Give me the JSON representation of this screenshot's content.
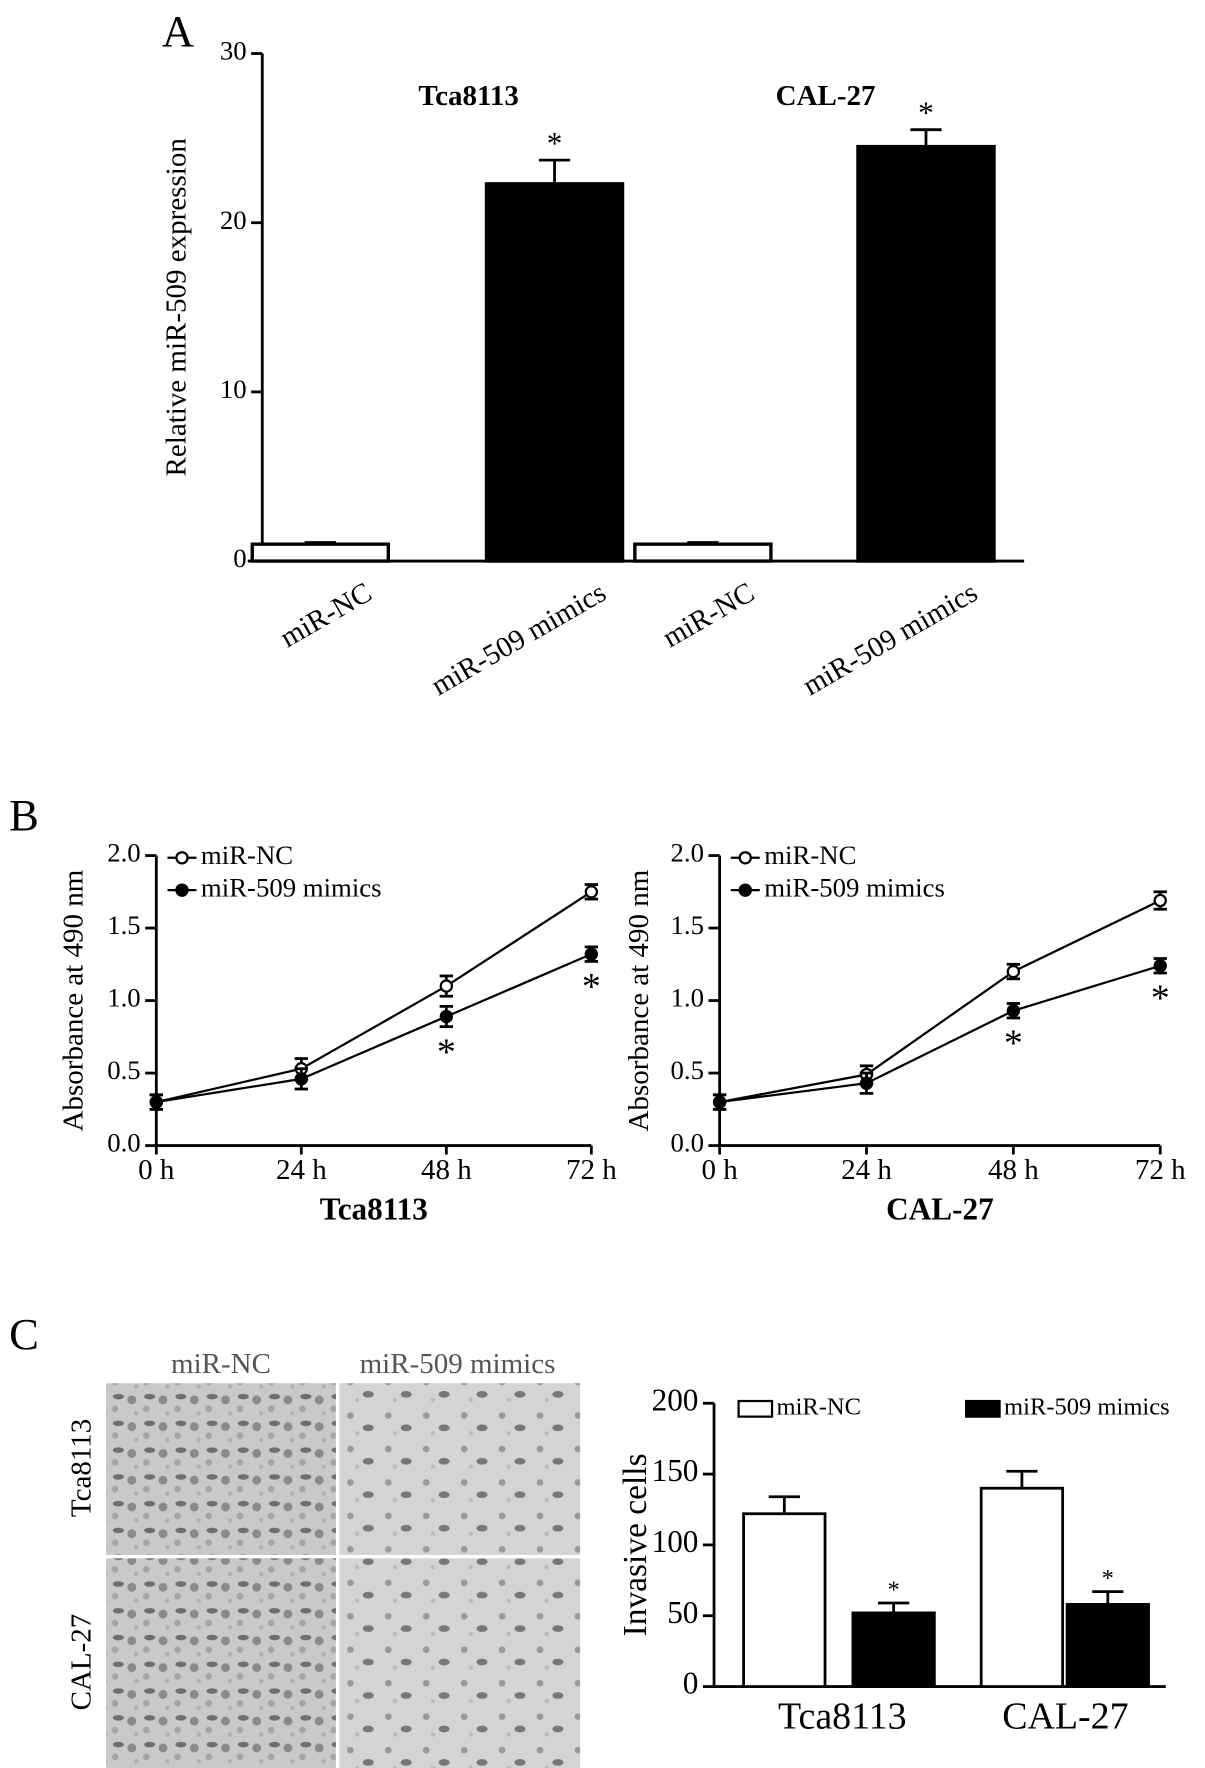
{
  "panel_labels": [
    "A",
    "B",
    "C"
  ],
  "micrographs": {
    "columns": [
      "miR-NC",
      "miR-509 mimics"
    ],
    "rows": [
      "Tca8113",
      "CAL-27"
    ]
  },
  "chart_data": [
    {
      "type": "bar",
      "ylabel": "Relative miR-509 expression",
      "categories": [
        "miR-NC",
        "miR-509 mimics",
        "miR-NC",
        "miR-509 mimics"
      ],
      "values": [
        1.0,
        22.3,
        1.0,
        24.5
      ],
      "errors": [
        0.1,
        1.4,
        0.1,
        1.0
      ],
      "colors": [
        "#ffffff",
        "#000000",
        "#ffffff",
        "#000000"
      ],
      "annotations": [
        null,
        "*",
        null,
        "*"
      ],
      "group_labels": [
        "Tca8113",
        "CAL-27"
      ],
      "ylim": [
        0,
        30
      ],
      "yticks": [
        0,
        10,
        20,
        30
      ]
    },
    {
      "type": "line",
      "xlabel": "Tca8113",
      "ylabel": "Absorbance at 490 nm",
      "categories": [
        "0 h",
        "24 h",
        "48 h",
        "72 h"
      ],
      "series": [
        {
          "name": "miR-NC",
          "color": "#ffffff",
          "values": [
            0.3,
            0.53,
            1.1,
            1.75
          ],
          "errors": [
            0.05,
            0.07,
            0.07,
            0.05
          ],
          "annotations": [
            null,
            null,
            null,
            null
          ]
        },
        {
          "name": "miR-509 mimics",
          "color": "#000000",
          "values": [
            0.3,
            0.46,
            0.89,
            1.32
          ],
          "errors": [
            0.05,
            0.07,
            0.07,
            0.05
          ],
          "annotations": [
            null,
            null,
            "*",
            "*"
          ]
        }
      ],
      "ylim": [
        0,
        2
      ],
      "yticks": [
        {
          "value": 0,
          "label": "0.0"
        },
        0.5,
        {
          "value": 1,
          "label": "1.0"
        },
        1.5,
        {
          "value": 2,
          "label": "2.0"
        }
      ]
    },
    {
      "type": "line",
      "xlabel": "CAL-27",
      "ylabel": "Absorbance at 490 nm",
      "categories": [
        "0 h",
        "24 h",
        "48 h",
        "72 h"
      ],
      "series": [
        {
          "name": "miR-NC",
          "color": "#ffffff",
          "values": [
            0.3,
            0.49,
            1.2,
            1.69
          ],
          "errors": [
            0.05,
            0.06,
            0.05,
            0.06
          ],
          "annotations": [
            null,
            null,
            null,
            null
          ]
        },
        {
          "name": "miR-509 mimics",
          "color": "#000000",
          "values": [
            0.3,
            0.43,
            0.93,
            1.24
          ],
          "errors": [
            0.05,
            0.07,
            0.05,
            0.05
          ],
          "annotations": [
            null,
            null,
            "*",
            "*"
          ]
        }
      ],
      "ylim": [
        0,
        2
      ],
      "yticks": [
        {
          "value": 0,
          "label": "0.0"
        },
        0.5,
        {
          "value": 1,
          "label": "1.0"
        },
        1.5,
        {
          "value": 2,
          "label": "2.0"
        }
      ]
    },
    {
      "type": "grouped_bar",
      "ylabel": "Invasive cells",
      "categories": [
        "Tca8113",
        "CAL-27"
      ],
      "series": [
        {
          "name": "miR-NC",
          "color": "#ffffff",
          "values": [
            122,
            140
          ],
          "errors": [
            12,
            12
          ],
          "annotations": [
            null,
            null
          ]
        },
        {
          "name": "miR-509 mimics",
          "color": "#000000",
          "values": [
            52,
            58
          ],
          "errors": [
            7,
            9
          ],
          "annotations": [
            "*",
            "*"
          ]
        }
      ],
      "ylim": [
        0,
        200
      ],
      "yticks": [
        0,
        50,
        100,
        150,
        200
      ]
    }
  ]
}
